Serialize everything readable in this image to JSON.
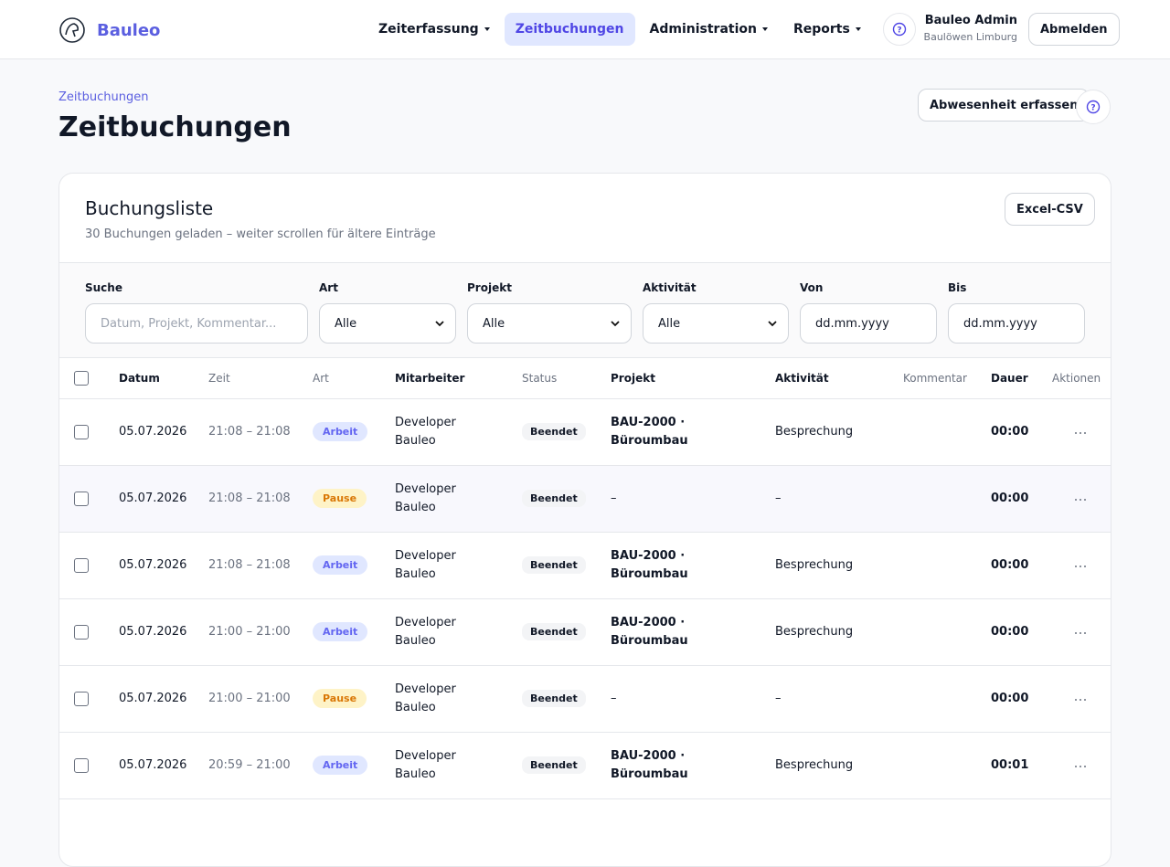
{
  "nav": {
    "brand": "Bauleo",
    "items": [
      {
        "label": "Zeiterfassung",
        "dropdown": true
      },
      {
        "label": "Zeitbuchungen",
        "dropdown": false,
        "active": true
      },
      {
        "label": "Administration",
        "dropdown": true
      },
      {
        "label": "Reports",
        "dropdown": true
      }
    ],
    "user": {
      "name": "Bauleo Admin",
      "org": "Baulöwen Limburg"
    },
    "logout": "Abmelden"
  },
  "header": {
    "breadcrumb": "Zeitbuchungen",
    "title": "Zeitbuchungen",
    "absence_button": "Abwesenheit erfassen"
  },
  "card": {
    "title": "Buchungsliste",
    "subtitle": "30 Buchungen geladen – weiter scrollen für ältere Einträge",
    "export_button": "Excel-CSV"
  },
  "filters": [
    {
      "label": "Suche",
      "placeholder": "Datum, Projekt, Kommentar..."
    },
    {
      "label": "Art",
      "value": "Alle",
      "select": true
    },
    {
      "label": "Projekt",
      "value": "Alle",
      "select": true
    },
    {
      "label": "Aktivität",
      "value": "Alle",
      "select": true
    },
    {
      "label": "Von",
      "value": "dd.mm.yyyy"
    },
    {
      "label": "Bis",
      "value": "dd.mm.yyyy"
    }
  ],
  "table": {
    "columns": [
      "Datum",
      "Zeit",
      "Art",
      "Mitarbeiter",
      "Status",
      "Projekt",
      "Aktivität",
      "Kommentar",
      "Dauer",
      "Aktionen"
    ],
    "rows": [
      {
        "date": "05.07.2026",
        "time": "21:08 – 21:08",
        "type": "Arbeit",
        "employee": "Developer Bauleo",
        "status": "Beendet",
        "project": "BAU-2000 · Büroumbau",
        "activity": "Besprechung",
        "duration": "00:00"
      },
      {
        "date": "05.07.2026",
        "time": "21:08 – 21:08",
        "type": "Pause",
        "employee": "Developer Bauleo",
        "status": "Beendet",
        "project": "–",
        "activity": "–",
        "duration": "00:00"
      },
      {
        "date": "05.07.2026",
        "time": "21:08 – 21:08",
        "type": "Arbeit",
        "employee": "Developer Bauleo",
        "status": "Beendet",
        "project": "BAU-2000 · Büroumbau",
        "activity": "Besprechung",
        "duration": "00:00"
      },
      {
        "date": "05.07.2026",
        "time": "21:00 – 21:00",
        "type": "Arbeit",
        "employee": "Developer Bauleo",
        "status": "Beendet",
        "project": "BAU-2000 · Büroumbau",
        "activity": "Besprechung",
        "duration": "00:00"
      },
      {
        "date": "05.07.2026",
        "time": "21:00 – 21:00",
        "type": "Pause",
        "employee": "Developer Bauleo",
        "status": "Beendet",
        "project": "–",
        "activity": "–",
        "duration": "00:00"
      },
      {
        "date": "05.07.2026",
        "time": "20:59 – 21:00",
        "type": "Arbeit",
        "employee": "Developer Bauleo",
        "status": "Beendet",
        "project": "BAU-2000 · Büroumbau",
        "activity": "Besprechung",
        "duration": "00:01"
      }
    ]
  }
}
